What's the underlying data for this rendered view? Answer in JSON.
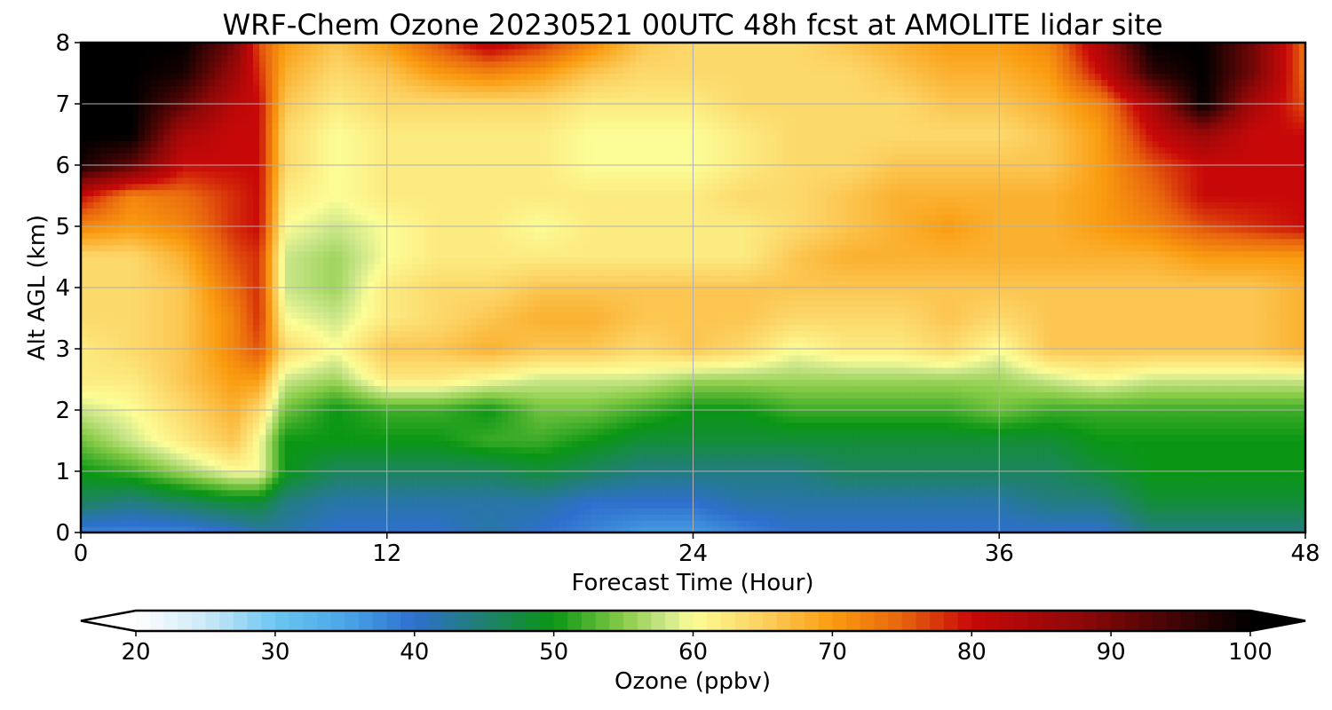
{
  "chart_data": {
    "type": "heatmap",
    "title": "WRF-Chem Ozone  20230521 00UTC 48h fcst at AMOLITE lidar site",
    "xlabel": "Forecast Time (Hour)",
    "ylabel": "Alt AGL (km)",
    "xlim": [
      0,
      48
    ],
    "ylim": [
      0,
      8
    ],
    "x_ticks": [
      0,
      12,
      24,
      36,
      48
    ],
    "y_ticks": [
      0,
      1,
      2,
      3,
      4,
      5,
      6,
      7,
      8
    ],
    "grid": true,
    "x_hours": [
      0,
      2,
      4,
      6,
      7,
      8,
      10,
      12,
      14,
      16,
      18,
      20,
      22,
      24,
      26,
      28,
      30,
      32,
      34,
      36,
      38,
      40,
      42,
      44,
      46,
      48
    ],
    "z_km": [
      0,
      0.5,
      1,
      1.5,
      2,
      2.5,
      3,
      3.5,
      4,
      4.5,
      5,
      5.5,
      6,
      6.5,
      7,
      7.5,
      8
    ],
    "ozone_ppbv": [
      [
        38,
        38,
        38,
        40,
        42,
        42,
        40,
        40,
        40,
        42,
        40,
        38,
        36,
        36,
        38,
        40,
        40,
        40,
        40,
        40,
        40,
        40,
        44,
        44,
        44,
        44
      ],
      [
        46,
        44,
        46,
        48,
        48,
        44,
        42,
        42,
        42,
        42,
        42,
        40,
        40,
        40,
        42,
        42,
        42,
        42,
        42,
        42,
        44,
        44,
        48,
        48,
        48,
        48
      ],
      [
        50,
        52,
        56,
        60,
        60,
        50,
        46,
        46,
        46,
        46,
        48,
        46,
        44,
        44,
        44,
        44,
        46,
        46,
        46,
        46,
        46,
        48,
        50,
        50,
        50,
        50
      ],
      [
        54,
        58,
        62,
        66,
        60,
        50,
        50,
        50,
        50,
        52,
        52,
        50,
        48,
        48,
        48,
        48,
        48,
        48,
        48,
        48,
        48,
        50,
        50,
        50,
        50,
        50
      ],
      [
        58,
        60,
        64,
        68,
        64,
        54,
        50,
        52,
        52,
        50,
        54,
        54,
        52,
        50,
        50,
        52,
        52,
        52,
        52,
        54,
        52,
        52,
        52,
        52,
        52,
        52
      ],
      [
        62,
        62,
        66,
        70,
        70,
        58,
        56,
        62,
        62,
        60,
        58,
        58,
        58,
        56,
        56,
        56,
        56,
        56,
        56,
        56,
        58,
        60,
        58,
        58,
        58,
        58
      ],
      [
        62,
        64,
        66,
        72,
        76,
        64,
        60,
        66,
        66,
        68,
        66,
        66,
        64,
        66,
        64,
        60,
        62,
        62,
        64,
        60,
        66,
        66,
        66,
        66,
        66,
        68
      ],
      [
        64,
        64,
        66,
        72,
        78,
        60,
        58,
        62,
        64,
        66,
        68,
        68,
        66,
        66,
        66,
        64,
        64,
        64,
        66,
        64,
        66,
        66,
        66,
        66,
        66,
        68
      ],
      [
        64,
        64,
        66,
        74,
        78,
        58,
        56,
        62,
        64,
        64,
        66,
        66,
        66,
        66,
        66,
        66,
        66,
        66,
        66,
        66,
        66,
        66,
        66,
        66,
        66,
        68
      ],
      [
        64,
        64,
        68,
        76,
        78,
        58,
        56,
        60,
        62,
        62,
        62,
        62,
        62,
        62,
        62,
        66,
        68,
        68,
        68,
        68,
        68,
        68,
        68,
        70,
        70,
        70
      ],
      [
        72,
        70,
        72,
        78,
        80,
        60,
        58,
        60,
        62,
        62,
        60,
        62,
        62,
        62,
        62,
        64,
        66,
        68,
        70,
        68,
        68,
        70,
        72,
        76,
        78,
        80
      ],
      [
        80,
        72,
        74,
        78,
        80,
        62,
        60,
        62,
        62,
        62,
        62,
        62,
        62,
        62,
        64,
        64,
        66,
        68,
        68,
        68,
        68,
        70,
        74,
        80,
        80,
        80
      ],
      [
        98,
        92,
        80,
        80,
        80,
        64,
        60,
        62,
        62,
        62,
        62,
        60,
        60,
        60,
        62,
        64,
        64,
        66,
        66,
        66,
        66,
        70,
        76,
        80,
        80,
        80
      ],
      [
        100,
        100,
        84,
        80,
        80,
        64,
        60,
        62,
        62,
        62,
        62,
        60,
        60,
        60,
        62,
        64,
        64,
        64,
        64,
        64,
        66,
        70,
        80,
        86,
        80,
        80
      ],
      [
        100,
        100,
        92,
        82,
        80,
        66,
        62,
        64,
        64,
        64,
        64,
        62,
        62,
        62,
        64,
        64,
        64,
        64,
        66,
        66,
        68,
        72,
        84,
        100,
        84,
        76
      ],
      [
        100,
        100,
        98,
        86,
        78,
        68,
        64,
        66,
        70,
        72,
        70,
        66,
        64,
        64,
        64,
        64,
        64,
        66,
        68,
        68,
        70,
        80,
        96,
        100,
        90,
        74
      ],
      [
        100,
        100,
        100,
        90,
        76,
        70,
        66,
        70,
        76,
        82,
        78,
        72,
        66,
        64,
        64,
        64,
        66,
        68,
        70,
        70,
        72,
        84,
        100,
        100,
        90,
        74
      ]
    ],
    "colorbar": {
      "label": "Ozone  (ppbv)",
      "ticks": [
        20,
        30,
        40,
        50,
        60,
        70,
        80,
        90,
        100
      ],
      "min": 20,
      "max": 100,
      "extend": "both",
      "stops": [
        {
          "v": 20,
          "c": "#ffffff"
        },
        {
          "v": 25,
          "c": "#cde9f7"
        },
        {
          "v": 30,
          "c": "#6cc6f2"
        },
        {
          "v": 35,
          "c": "#4aa6e6"
        },
        {
          "v": 40,
          "c": "#2e6fcd"
        },
        {
          "v": 45,
          "c": "#20806f"
        },
        {
          "v": 50,
          "c": "#0a9614"
        },
        {
          "v": 55,
          "c": "#88cc48"
        },
        {
          "v": 58,
          "c": "#cbe68a"
        },
        {
          "v": 60,
          "c": "#fcfd96"
        },
        {
          "v": 65,
          "c": "#fcd060"
        },
        {
          "v": 70,
          "c": "#fa9c10"
        },
        {
          "v": 75,
          "c": "#e8640e"
        },
        {
          "v": 80,
          "c": "#c80808"
        },
        {
          "v": 88,
          "c": "#8c0808"
        },
        {
          "v": 95,
          "c": "#3c0404"
        },
        {
          "v": 100,
          "c": "#000000"
        }
      ]
    }
  }
}
